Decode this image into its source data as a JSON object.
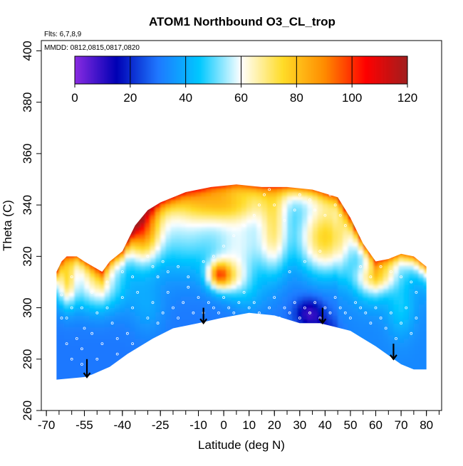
{
  "chart_data": {
    "type": "heatmap",
    "title": "ATOM1 Northbound O3_CL_trop",
    "notes": [
      "Flts: 6,7,8,9",
      "MMDD: 0812,0815,0817,0820"
    ],
    "xlabel": "Latitude (deg N)",
    "ylabel": "Theta (C)",
    "xlim": [
      -72,
      86
    ],
    "ylim": [
      260,
      404
    ],
    "x_ticks": [
      -70,
      -55,
      -40,
      -25,
      -10,
      0,
      10,
      20,
      30,
      40,
      50,
      60,
      70,
      80
    ],
    "y_ticks": [
      260,
      280,
      300,
      320,
      340,
      360,
      380,
      400
    ],
    "colorbar": {
      "min": 0,
      "max": 120,
      "ticks": [
        0,
        20,
        40,
        60,
        80,
        100,
        120
      ],
      "stops": [
        "#8a2be2",
        "#0000b4",
        "#1e78ff",
        "#00c8ff",
        "#ffffff",
        "#ffdc28",
        "#ff8c00",
        "#ff0000",
        "#a01e1e"
      ]
    },
    "lower_boundary": [
      [
        -66,
        272
      ],
      [
        -55,
        273
      ],
      [
        -52,
        274
      ],
      [
        -45,
        277
      ],
      [
        -38,
        282
      ],
      [
        -28,
        288
      ],
      [
        -20,
        292
      ],
      [
        -10,
        294
      ],
      [
        -1,
        296
      ],
      [
        10,
        298
      ],
      [
        20,
        297
      ],
      [
        30,
        294
      ],
      [
        38,
        294
      ],
      [
        50,
        291
      ],
      [
        60,
        285
      ],
      [
        70,
        278
      ],
      [
        75,
        276
      ],
      [
        80,
        276
      ]
    ],
    "upper_boundary": [
      [
        -66,
        314
      ],
      [
        -64,
        318
      ],
      [
        -62,
        320
      ],
      [
        -58,
        320
      ],
      [
        -55,
        318
      ],
      [
        -48,
        314
      ],
      [
        -45,
        318
      ],
      [
        -40,
        322
      ],
      [
        -35,
        332
      ],
      [
        -30,
        338
      ],
      [
        -25,
        341
      ],
      [
        -15,
        345
      ],
      [
        -5,
        347
      ],
      [
        5,
        348
      ],
      [
        15,
        347
      ],
      [
        25,
        347
      ],
      [
        35,
        346
      ],
      [
        45,
        343
      ],
      [
        50,
        335
      ],
      [
        55,
        325
      ],
      [
        60,
        318
      ],
      [
        65,
        319
      ],
      [
        70,
        321
      ],
      [
        75,
        320
      ],
      [
        80,
        316
      ]
    ],
    "ozone_features": [
      {
        "lat": -62,
        "theta": 310,
        "sx": 2.5,
        "sy": 7,
        "value": 30
      },
      {
        "lat": -50,
        "theta": 308,
        "sx": 8,
        "sy": 7,
        "value": 25
      },
      {
        "lat": -32,
        "theta": 330,
        "sx": 5,
        "sy": 9,
        "value": 50
      },
      {
        "lat": -15,
        "theta": 330,
        "sx": 10,
        "sy": 12,
        "value": 22
      },
      {
        "lat": 7,
        "theta": 325,
        "sx": 8,
        "sy": 10,
        "value": 25
      },
      {
        "lat": 0,
        "theta": 340,
        "sx": 12,
        "sy": 5,
        "value": 30
      },
      {
        "lat": -2,
        "theta": 313,
        "sx": 3,
        "sy": 3.5,
        "value": 40
      },
      {
        "lat": 2,
        "theta": 312,
        "sx": 5,
        "sy": 5,
        "value": 25
      },
      {
        "lat": 20,
        "theta": 330,
        "sx": 4,
        "sy": 12,
        "value": 30
      },
      {
        "lat": 40,
        "theta": 327,
        "sx": 8,
        "sy": 10,
        "value": 45
      },
      {
        "lat": 34,
        "theta": 298,
        "sx": 4,
        "sy": 4,
        "value": -22
      },
      {
        "lat": 40,
        "theta": 292,
        "sx": 4,
        "sy": 3,
        "value": -10
      },
      {
        "lat": -30,
        "theta": 300,
        "sx": 5,
        "sy": 8,
        "value": 8
      },
      {
        "lat": 10,
        "theta": 305,
        "sx": 5,
        "sy": 6,
        "value": 8
      },
      {
        "lat": 58,
        "theta": 308,
        "sx": 5,
        "sy": 6,
        "value": 12
      },
      {
        "lat": 70,
        "theta": 300,
        "sx": 4,
        "sy": 8,
        "value": 12
      },
      {
        "lat": 60,
        "theta": 312,
        "sx": 6,
        "sy": 4,
        "value": 22
      }
    ],
    "arrows": [
      {
        "lat": -54,
        "theta_top": 280,
        "theta_bottom": 273
      },
      {
        "lat": -8,
        "theta_top": 300,
        "theta_bottom": 294
      },
      {
        "lat": 39,
        "theta_top": 300,
        "theta_bottom": 294
      },
      {
        "lat": 67,
        "theta_top": 286,
        "theta_bottom": 280
      }
    ],
    "sample_points": [
      [
        -64,
        305
      ],
      [
        -62,
        296
      ],
      [
        -60,
        300
      ],
      [
        -58,
        288
      ],
      [
        -56,
        284
      ],
      [
        -55,
        292
      ],
      [
        -52,
        290
      ],
      [
        -50,
        298
      ],
      [
        -48,
        286
      ],
      [
        -46,
        300
      ],
      [
        -44,
        294
      ],
      [
        -42,
        288
      ],
      [
        -40,
        304
      ],
      [
        -38,
        290
      ],
      [
        -36,
        300
      ],
      [
        -34,
        306
      ],
      [
        -30,
        296
      ],
      [
        -28,
        302
      ],
      [
        -26,
        294
      ],
      [
        -24,
        298
      ],
      [
        -22,
        306
      ],
      [
        -20,
        300
      ],
      [
        -18,
        296
      ],
      [
        -16,
        302
      ],
      [
        -14,
        308
      ],
      [
        -12,
        298
      ],
      [
        -10,
        304
      ],
      [
        -8,
        298
      ],
      [
        -6,
        302
      ],
      [
        -4,
        300
      ],
      [
        -2,
        298
      ],
      [
        0,
        304
      ],
      [
        2,
        300
      ],
      [
        4,
        298
      ],
      [
        6,
        302
      ],
      [
        8,
        306
      ],
      [
        10,
        300
      ],
      [
        12,
        302
      ],
      [
        14,
        298
      ],
      [
        16,
        296
      ],
      [
        18,
        300
      ],
      [
        20,
        304
      ],
      [
        22,
        296
      ],
      [
        24,
        300
      ],
      [
        26,
        298
      ],
      [
        28,
        302
      ],
      [
        30,
        296
      ],
      [
        32,
        300
      ],
      [
        34,
        298
      ],
      [
        36,
        302
      ],
      [
        38,
        296
      ],
      [
        40,
        300
      ],
      [
        42,
        298
      ],
      [
        44,
        304
      ],
      [
        46,
        300
      ],
      [
        48,
        298
      ],
      [
        50,
        296
      ],
      [
        52,
        302
      ],
      [
        54,
        300
      ],
      [
        56,
        298
      ],
      [
        58,
        294
      ],
      [
        60,
        300
      ],
      [
        62,
        296
      ],
      [
        64,
        292
      ],
      [
        66,
        298
      ],
      [
        68,
        288
      ],
      [
        70,
        294
      ],
      [
        72,
        300
      ],
      [
        74,
        290
      ],
      [
        76,
        296
      ],
      [
        -30,
        320
      ],
      [
        -28,
        316
      ],
      [
        -26,
        312
      ],
      [
        -24,
        318
      ],
      [
        -22,
        314
      ],
      [
        -18,
        316
      ],
      [
        -14,
        312
      ],
      [
        -8,
        318
      ],
      [
        -4,
        320
      ],
      [
        0,
        324
      ],
      [
        4,
        328
      ],
      [
        8,
        332
      ],
      [
        12,
        336
      ],
      [
        14,
        340
      ],
      [
        16,
        344
      ],
      [
        18,
        346
      ],
      [
        20,
        340
      ],
      [
        24,
        334
      ],
      [
        28,
        338
      ],
      [
        30,
        344
      ],
      [
        34,
        342
      ],
      [
        36,
        338
      ],
      [
        40,
        336
      ],
      [
        42,
        344
      ],
      [
        44,
        340
      ],
      [
        46,
        336
      ],
      [
        48,
        332
      ],
      [
        38,
        322
      ],
      [
        32,
        318
      ],
      [
        26,
        314
      ],
      [
        54,
        316
      ],
      [
        58,
        312
      ],
      [
        62,
        316
      ],
      [
        66,
        314
      ],
      [
        70,
        312
      ],
      [
        74,
        310
      ],
      [
        76,
        306
      ],
      [
        -60,
        312
      ],
      [
        -56,
        300
      ],
      [
        -52,
        306
      ],
      [
        -46,
        310
      ],
      [
        -40,
        314
      ],
      [
        -36,
        312
      ],
      [
        -64,
        296
      ],
      [
        -62,
        286
      ],
      [
        -60,
        280
      ],
      [
        -56,
        278
      ],
      [
        -50,
        280
      ],
      [
        -42,
        282
      ],
      [
        -36,
        286
      ]
    ]
  }
}
